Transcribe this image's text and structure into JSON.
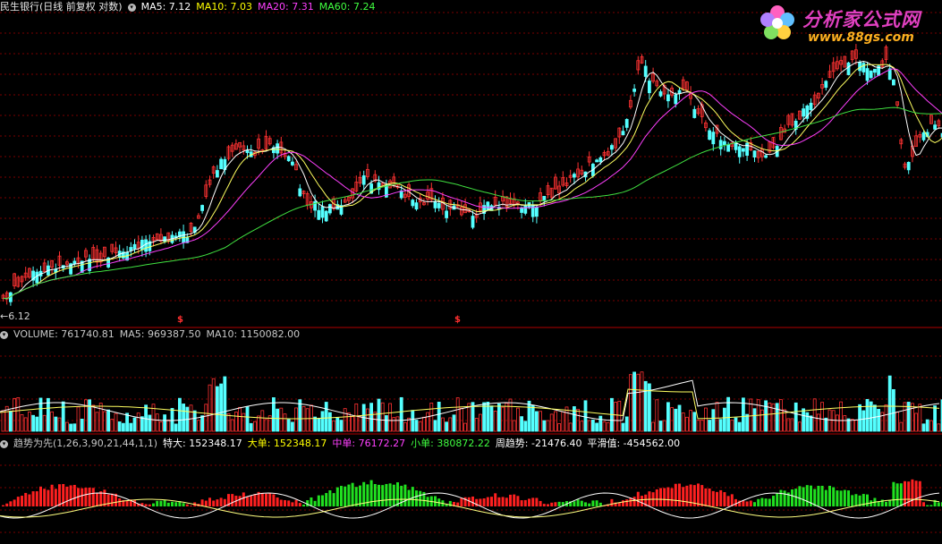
{
  "main_panel": {
    "title": "民生银行(日线 前复权 对数)",
    "indicators": [
      {
        "label": "MA5: 7.12",
        "color": "#ffffff"
      },
      {
        "label": "MA10: 7.03",
        "color": "#ffff00"
      },
      {
        "label": "MA20: 7.31",
        "color": "#ff40ff"
      },
      {
        "label": "MA60: 7.24",
        "color": "#40ff40"
      }
    ],
    "low_label": "6.12",
    "marker_symbol": "$"
  },
  "volume_panel": {
    "indicators": [
      {
        "label": "VOLUME: 761740.81",
        "color": "#c8c8c8"
      },
      {
        "label": "MA5: 969387.50",
        "color": "#c8c8c8"
      },
      {
        "label": "MA10: 1150082.00",
        "color": "#c8c8c8"
      }
    ]
  },
  "trend_panel": {
    "indicators": [
      {
        "label": "趋势为先(1,26,3,90,21,44,1,1)",
        "color": "#c8c8c8"
      },
      {
        "label": "特大: 152348.17",
        "color": "#ffffff"
      },
      {
        "label": "大单: 152348.17",
        "color": "#ffff00"
      },
      {
        "label": "中单: 76172.27",
        "color": "#ff40ff"
      },
      {
        "label": "小单: 380872.22",
        "color": "#40ff40"
      },
      {
        "label": "周趋势: -21476.40",
        "color": "#ffffff"
      },
      {
        "label": "平滑值: -454562.00",
        "color": "#ffffff"
      }
    ]
  },
  "logo": {
    "text": "分析家公式网",
    "url_text": "www.88gs.com"
  },
  "colors": {
    "up": "#ff3232",
    "down": "#54ffff",
    "grid": "#7a0000"
  }
}
